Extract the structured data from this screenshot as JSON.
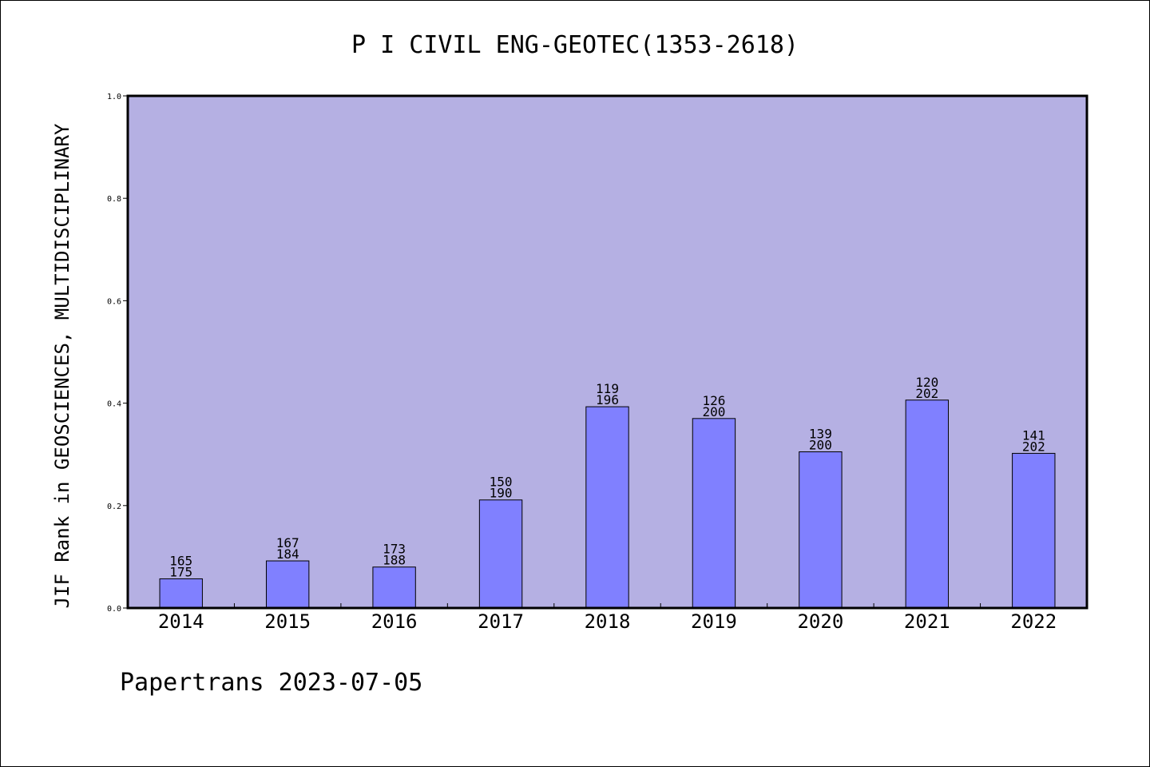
{
  "chart_data": {
    "type": "bar",
    "title": "P I CIVIL ENG-GEOTEC(1353-2618)",
    "xlabel": "",
    "ylabel": "JIF Rank in GEOSCIENCES, MULTIDISCIPLINARY",
    "categories": [
      "2014",
      "2015",
      "2016",
      "2017",
      "2018",
      "2019",
      "2020",
      "2021",
      "2022"
    ],
    "values": [
      0.057,
      0.092,
      0.08,
      0.211,
      0.393,
      0.37,
      0.305,
      0.406,
      0.302
    ],
    "rank": [
      "165",
      "167",
      "173",
      "150",
      "119",
      "126",
      "139",
      "120",
      "141"
    ],
    "total": [
      "175",
      "184",
      "188",
      "190",
      "196",
      "200",
      "200",
      "202",
      "202"
    ],
    "ylim": [
      0,
      1.0
    ],
    "yticks": [
      "0.0",
      "0.2",
      "0.4",
      "0.6",
      "0.8",
      "1.0"
    ],
    "grid": false,
    "colors": {
      "plot_background": "#b5b0e3",
      "bar_fill": "#8080ff",
      "bar_stroke": "#000000"
    }
  },
  "footer": "Papertrans 2023-07-05"
}
